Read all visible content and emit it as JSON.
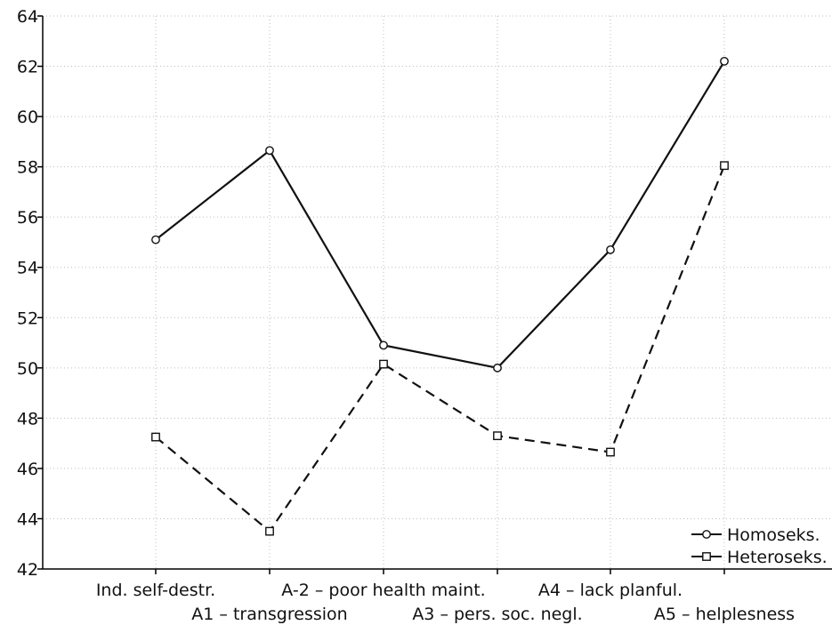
{
  "chart_data": {
    "type": "line",
    "title": "",
    "xlabel": "",
    "ylabel": "",
    "ylim": [
      42,
      64
    ],
    "yticks": [
      42,
      44,
      46,
      48,
      50,
      52,
      54,
      56,
      58,
      60,
      62,
      64
    ],
    "grid": true,
    "legend_position": "bottom-right",
    "categories": [
      "Ind. self-destr.",
      "A1 – transgression",
      "A-2 – poor health maint.",
      "A3 – pers. soc. negl.",
      "A4 – lack planful.",
      "A5 – helplesness"
    ],
    "series": [
      {
        "name": "Homoseks.",
        "marker": "circle",
        "line_style": "solid",
        "values": [
          55.1,
          58.65,
          50.9,
          50.0,
          54.7,
          62.2
        ]
      },
      {
        "name": "Heteroseks.",
        "marker": "square",
        "line_style": "dashed",
        "values": [
          47.25,
          43.5,
          50.15,
          47.3,
          46.65,
          58.05
        ]
      }
    ]
  }
}
